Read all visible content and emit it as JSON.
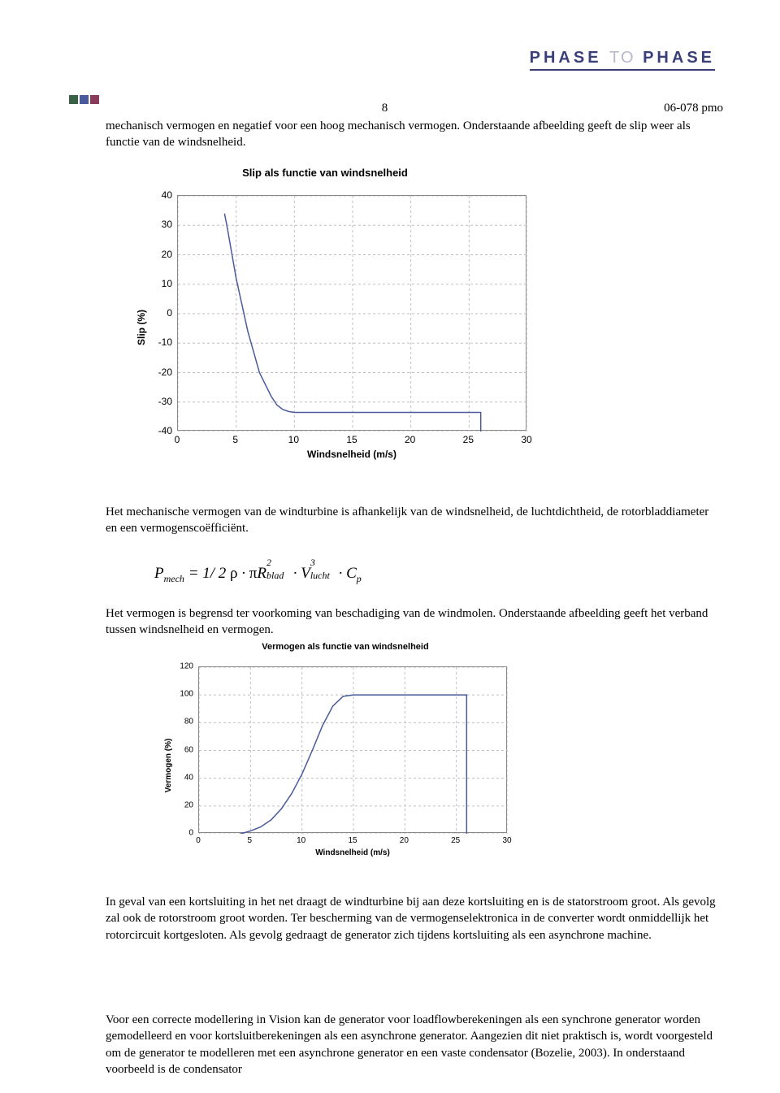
{
  "brand": {
    "left": "PHASE",
    "mid": "TO",
    "right": "PHASE"
  },
  "side_squares": [
    "#3a6048",
    "#4a5a9a",
    "#8a3a5a"
  ],
  "header": {
    "page_num": "8",
    "doc_id": "06-078 pmo"
  },
  "para1": "mechanisch vermogen en negatief voor een hoog mechanisch vermogen. Onderstaande afbeelding geeft de slip weer als functie van de windsnelheid.",
  "chart1": {
    "title": "Slip als functie van windsnelheid",
    "ylabel": "Slip (%)",
    "xlabel": "Windsnelheid (m/s)",
    "ylim": [
      -40,
      40
    ],
    "ytick_step": 10,
    "xlim": [
      0,
      30
    ],
    "xtick_step": 5,
    "line_color": "#4a5a9a",
    "grid_color": "#bfbfbf",
    "border_color": "#888888",
    "line_width": 1.5,
    "points_x": [
      4,
      4.2,
      5,
      6,
      7,
      8,
      8.5,
      9,
      9.5,
      10,
      15,
      20,
      25,
      26,
      26
    ],
    "points_y": [
      34,
      30,
      12,
      -6,
      -20,
      -28,
      -31,
      -32.5,
      -33.2,
      -33.5,
      -33.5,
      -33.5,
      -33.5,
      -33.5,
      -40
    ]
  },
  "para2": "Het mechanische vermogen van de windturbine is afhankelijk van de windsnelheid, de luchtdichtheid, de rotorbladdiameter en een vermogenscoëfficiënt.",
  "formula": "P_{mech} = 1/2 ρ · πR²_{blad} · V³_{lucht} · C_{p}",
  "para3": "Het vermogen is begrensd ter voorkoming van beschadiging van de windmolen. Onderstaande afbeelding geeft het verband tussen windsnelheid en vermogen.",
  "chart2": {
    "title": "Vermogen als functie van windsnelheid",
    "ylabel": "Vermogen (%)",
    "xlabel": "Windsnelheid (m/s)",
    "ylim": [
      0,
      120
    ],
    "ytick_step": 20,
    "xlim": [
      0,
      30
    ],
    "xtick_step": 5,
    "line_color": "#4a5a9a",
    "grid_color": "#bfbfbf",
    "border_color": "#888888",
    "line_width": 1.5,
    "points_x": [
      4,
      5,
      6,
      7,
      8,
      9,
      10,
      11,
      12,
      13,
      14,
      15,
      20,
      25,
      26,
      26
    ],
    "points_y": [
      0,
      2,
      5,
      10,
      18,
      29,
      43,
      60,
      78,
      92,
      99,
      100,
      100,
      100,
      100,
      0
    ]
  },
  "para4": "In geval van een kortsluiting in het net draagt de windturbine bij aan deze kortsluiting en is de statorstroom groot. Als gevolg zal ook de rotorstroom groot worden. Ter bescherming van de vermogenselektronica in de converter wordt onmiddellijk het rotorcircuit kortgesloten. Als gevolg gedraagt de generator zich tijdens kortsluiting als een asynchrone machine.",
  "para5": "Voor een correcte modellering in Vision kan de generator voor loadflowberekeningen als een synchrone generator worden gemodelleerd en voor kortsluitberekeningen als een asynchrone generator. Aangezien dit niet praktisch is, wordt voorgesteld om de generator te modelleren met een asynchrone generator en een vaste condensator (Bozelie, 2003). In onderstaand voorbeeld is de condensator"
}
